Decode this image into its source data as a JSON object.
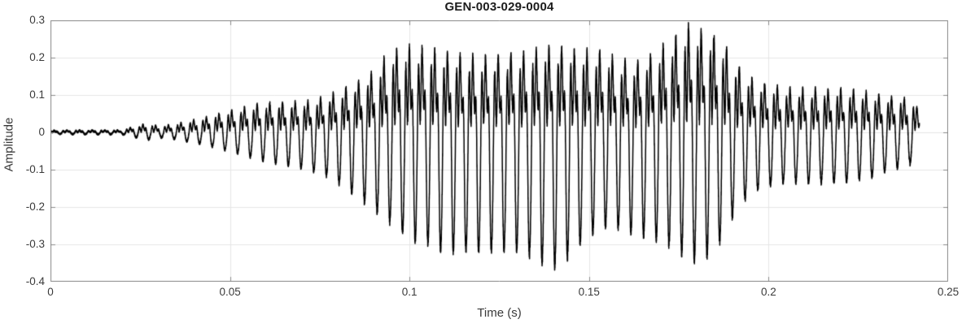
{
  "chart_data": {
    "type": "line",
    "title": "GEN-003-029-0004",
    "xlabel": "Time (s)",
    "ylabel": "Amplitude",
    "xlim": [
      0,
      0.25
    ],
    "ylim": [
      -0.4,
      0.3
    ],
    "xticks": [
      0,
      0.05,
      0.1,
      0.15,
      0.2,
      0.25
    ],
    "xtick_labels": [
      "0",
      "0.05",
      "0.1",
      "0.15",
      "0.2",
      "0.25"
    ],
    "yticks": [
      0.3,
      0.2,
      0.1,
      0,
      -0.1,
      -0.2,
      -0.3,
      -0.4
    ],
    "ytick_labels": [
      "0.3",
      "0.2",
      "0.1",
      "0",
      "-0.1",
      "-0.2",
      "-0.3",
      "-0.4"
    ],
    "grid": true,
    "legend": "none",
    "colors": {
      "line": "#000000",
      "axis": "#8a8a8a",
      "grid": "#e6e6e6",
      "tick_text": "#3a3a3a",
      "title_text": "#1c1c1c",
      "background": "#ffffff"
    },
    "signal": {
      "kind": "speech-like acoustic waveform, synthesized from measured envelope",
      "t_start": 0,
      "t_end": 0.242,
      "f0_hz": 283,
      "harmonics": [
        [
          1.0,
          0.0
        ],
        [
          0.5,
          1.7
        ],
        [
          0.33,
          2.6
        ],
        [
          0.2,
          0.9
        ]
      ],
      "am_modulation": [
        [
          23.7,
          0.1,
          0.0
        ],
        [
          9.3,
          0.08,
          2.0
        ]
      ],
      "noise_base": 0.002,
      "noise_scale": 0.05,
      "envelope_points": [
        [
          0.0,
          0.004,
          -0.004
        ],
        [
          0.02,
          0.005,
          -0.005
        ],
        [
          0.023,
          0.014,
          -0.012
        ],
        [
          0.027,
          0.026,
          -0.022
        ],
        [
          0.03,
          0.018,
          -0.015
        ],
        [
          0.034,
          0.024,
          -0.02
        ],
        [
          0.038,
          0.032,
          -0.027
        ],
        [
          0.043,
          0.042,
          -0.035
        ],
        [
          0.048,
          0.052,
          -0.045
        ],
        [
          0.054,
          0.064,
          -0.058
        ],
        [
          0.06,
          0.078,
          -0.078
        ],
        [
          0.066,
          0.085,
          -0.095
        ],
        [
          0.072,
          0.092,
          -0.11
        ],
        [
          0.078,
          0.105,
          -0.13
        ],
        [
          0.084,
          0.122,
          -0.155
        ],
        [
          0.09,
          0.14,
          -0.18
        ],
        [
          0.095,
          0.185,
          -0.205
        ],
        [
          0.1,
          0.195,
          -0.245
        ],
        [
          0.105,
          0.205,
          -0.27
        ],
        [
          0.11,
          0.212,
          -0.32
        ],
        [
          0.115,
          0.215,
          -0.33
        ],
        [
          0.12,
          0.21,
          -0.335
        ],
        [
          0.126,
          0.205,
          -0.315
        ],
        [
          0.131,
          0.2,
          -0.3
        ],
        [
          0.136,
          0.212,
          -0.325
        ],
        [
          0.141,
          0.22,
          -0.35
        ],
        [
          0.146,
          0.228,
          -0.33
        ],
        [
          0.151,
          0.245,
          -0.305
        ],
        [
          0.154,
          0.262,
          -0.3
        ],
        [
          0.158,
          0.235,
          -0.31
        ],
        [
          0.163,
          0.215,
          -0.32
        ],
        [
          0.168,
          0.222,
          -0.3
        ],
        [
          0.173,
          0.242,
          -0.295
        ],
        [
          0.178,
          0.26,
          -0.312
        ],
        [
          0.183,
          0.246,
          -0.3
        ],
        [
          0.187,
          0.23,
          -0.268
        ],
        [
          0.19,
          0.185,
          -0.215
        ],
        [
          0.194,
          0.15,
          -0.172
        ],
        [
          0.199,
          0.132,
          -0.148
        ],
        [
          0.205,
          0.116,
          -0.132
        ],
        [
          0.211,
          0.106,
          -0.125
        ],
        [
          0.217,
          0.1,
          -0.116
        ],
        [
          0.223,
          0.098,
          -0.112
        ],
        [
          0.229,
          0.095,
          -0.11
        ],
        [
          0.235,
          0.098,
          -0.101
        ],
        [
          0.24,
          0.1,
          -0.093
        ],
        [
          0.242,
          0.062,
          -0.055
        ]
      ]
    }
  }
}
